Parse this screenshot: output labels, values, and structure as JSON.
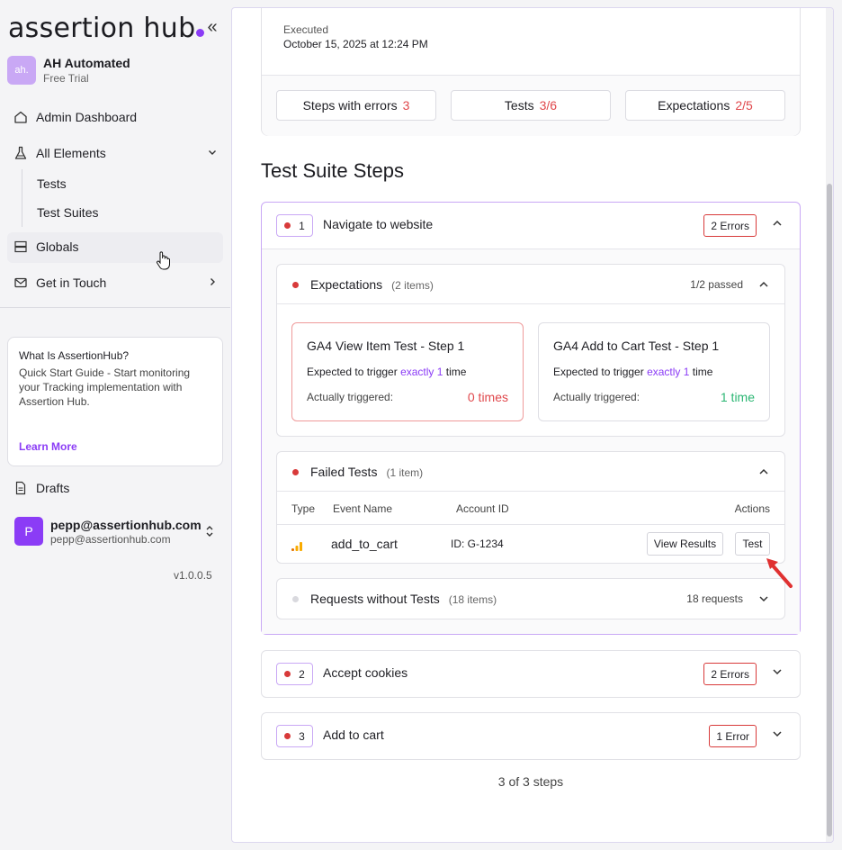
{
  "sidebar": {
    "logo": "assertion hub",
    "org": {
      "avatar_text": "ah.",
      "name": "AH Automated",
      "plan": "Free Trial"
    },
    "nav": {
      "admin": "Admin Dashboard",
      "all_elements": "All Elements",
      "tests": "Tests",
      "test_suites": "Test Suites",
      "globals": "Globals",
      "get_in_touch": "Get in Touch"
    },
    "guide": {
      "title": "What Is AssertionHub?",
      "body": "Quick Start Guide - Start monitoring your Tracking implementation with Assertion Hub.",
      "link": "Learn More"
    },
    "drafts": "Drafts",
    "user": {
      "avatar": "P",
      "name": "pepp@assertionhub.com",
      "email": "pepp@assertionhub.com"
    },
    "version": "v1.0.0.5"
  },
  "summary": {
    "executed_label": "Executed",
    "executed_date": "October 15, 2025 at 12:24 PM",
    "stats": [
      {
        "label": "Steps with errors",
        "value": "3"
      },
      {
        "label": "Tests",
        "value": "3/6"
      },
      {
        "label": "Expectations",
        "value": "2/5"
      }
    ]
  },
  "section_title": "Test Suite Steps",
  "steps": [
    {
      "number": "1",
      "title": "Navigate to website",
      "badge": "2 Errors"
    },
    {
      "number": "2",
      "title": "Accept cookies",
      "badge": "2 Errors"
    },
    {
      "number": "3",
      "title": "Add to cart",
      "badge": "1 Error"
    }
  ],
  "expectations": {
    "title": "Expectations",
    "count": "(2 items)",
    "status": "1/2 passed",
    "cards": [
      {
        "title": "GA4 View Item Test - Step 1",
        "prefix": "Expected to trigger",
        "highlight": "exactly 1",
        "suffix": "time",
        "actual_label": "Actually triggered:",
        "result": "0 times"
      },
      {
        "title": "GA4 Add to Cart Test - Step 1",
        "prefix": "Expected to trigger",
        "highlight": "exactly 1",
        "suffix": "time",
        "actual_label": "Actually triggered:",
        "result": "1 time"
      }
    ]
  },
  "failed_tests": {
    "title": "Failed Tests",
    "count": "(1 item)",
    "columns": [
      "Type",
      "Event Name",
      "Account ID",
      "Actions"
    ],
    "rows": [
      {
        "event": "add_to_cart",
        "account": "ID: G-1234",
        "view_results": "View Results",
        "test": "Test"
      }
    ]
  },
  "requests": {
    "title": "Requests without Tests",
    "count": "(18 items)",
    "status": "18 requests"
  },
  "footer": "3 of 3 steps",
  "colors": {
    "accent": "#8b3cf6",
    "error": "#e0484c",
    "success": "#2bb673",
    "ga_orange": "#f9ab00"
  }
}
